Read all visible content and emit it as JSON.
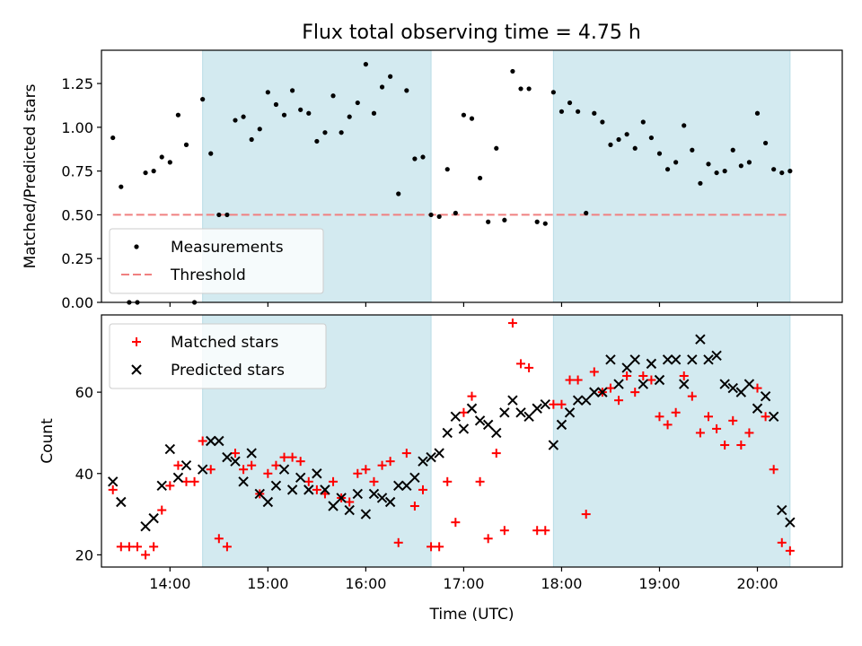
{
  "title": "Flux total observing time = 4.75 h",
  "chart_data": [
    {
      "type": "scatter",
      "ylabel": "Matched/Predicted stars",
      "xlabel": "",
      "xlim": [
        "13:18",
        "20:52"
      ],
      "ylim": [
        0,
        1.44
      ],
      "yticks": [
        "0.00",
        "0.25",
        "0.50",
        "0.75",
        "1.00",
        "1.25"
      ],
      "legend_position": "lower-left",
      "shaded_intervals": [
        [
          "14:20",
          "16:40"
        ],
        [
          "17:55",
          "20:20"
        ]
      ],
      "shade_color": "#d3eaf0",
      "threshold": {
        "name": "Threshold",
        "value": 0.5,
        "x_range": [
          "13:25",
          "20:20"
        ],
        "color": "#f08080",
        "style": "dashed"
      },
      "series": [
        {
          "name": "Measurements",
          "marker": "dot",
          "color": "#000000",
          "points": [
            [
              "13:25",
              0.94
            ],
            [
              "13:30",
              0.66
            ],
            [
              "13:35",
              0.0
            ],
            [
              "13:40",
              0.0
            ],
            [
              "13:45",
              0.74
            ],
            [
              "13:50",
              0.75
            ],
            [
              "13:55",
              0.83
            ],
            [
              "14:00",
              0.8
            ],
            [
              "14:05",
              1.07
            ],
            [
              "14:10",
              0.9
            ],
            [
              "14:15",
              0.0
            ],
            [
              "14:20",
              1.16
            ],
            [
              "14:25",
              0.85
            ],
            [
              "14:30",
              0.5
            ],
            [
              "14:35",
              0.5
            ],
            [
              "14:40",
              1.04
            ],
            [
              "14:45",
              1.06
            ],
            [
              "14:50",
              0.93
            ],
            [
              "14:55",
              0.99
            ],
            [
              "15:00",
              1.2
            ],
            [
              "15:05",
              1.13
            ],
            [
              "15:10",
              1.07
            ],
            [
              "15:15",
              1.21
            ],
            [
              "15:20",
              1.1
            ],
            [
              "15:25",
              1.08
            ],
            [
              "15:30",
              0.92
            ],
            [
              "15:35",
              0.97
            ],
            [
              "15:40",
              1.18
            ],
            [
              "15:45",
              0.97
            ],
            [
              "15:50",
              1.06
            ],
            [
              "15:55",
              1.14
            ],
            [
              "16:00",
              1.36
            ],
            [
              "16:05",
              1.08
            ],
            [
              "16:10",
              1.23
            ],
            [
              "16:15",
              1.29
            ],
            [
              "16:20",
              0.62
            ],
            [
              "16:25",
              1.21
            ],
            [
              "16:30",
              0.82
            ],
            [
              "16:35",
              0.83
            ],
            [
              "16:40",
              0.5
            ],
            [
              "16:45",
              0.49
            ],
            [
              "16:50",
              0.76
            ],
            [
              "16:55",
              0.51
            ],
            [
              "17:00",
              1.07
            ],
            [
              "17:05",
              1.05
            ],
            [
              "17:10",
              0.71
            ],
            [
              "17:15",
              0.46
            ],
            [
              "17:20",
              0.88
            ],
            [
              "17:25",
              0.47
            ],
            [
              "17:30",
              1.32
            ],
            [
              "17:35",
              1.22
            ],
            [
              "17:40",
              1.22
            ],
            [
              "17:45",
              0.46
            ],
            [
              "17:50",
              0.45
            ],
            [
              "17:55",
              1.2
            ],
            [
              "18:00",
              1.09
            ],
            [
              "18:05",
              1.14
            ],
            [
              "18:10",
              1.09
            ],
            [
              "18:15",
              0.51
            ],
            [
              "18:20",
              1.08
            ],
            [
              "18:25",
              1.03
            ],
            [
              "18:30",
              0.9
            ],
            [
              "18:35",
              0.93
            ],
            [
              "18:40",
              0.96
            ],
            [
              "18:45",
              0.88
            ],
            [
              "18:50",
              1.03
            ],
            [
              "18:55",
              0.94
            ],
            [
              "19:00",
              0.85
            ],
            [
              "19:05",
              0.76
            ],
            [
              "19:10",
              0.8
            ],
            [
              "19:15",
              1.01
            ],
            [
              "19:20",
              0.87
            ],
            [
              "19:25",
              0.68
            ],
            [
              "19:30",
              0.79
            ],
            [
              "19:35",
              0.74
            ],
            [
              "19:40",
              0.75
            ],
            [
              "19:45",
              0.87
            ],
            [
              "19:50",
              0.78
            ],
            [
              "19:55",
              0.8
            ],
            [
              "20:00",
              1.08
            ],
            [
              "20:05",
              0.91
            ],
            [
              "20:10",
              0.76
            ],
            [
              "20:15",
              0.74
            ],
            [
              "20:20",
              0.75
            ]
          ]
        }
      ]
    },
    {
      "type": "scatter",
      "ylabel": "Count",
      "xlabel": "Time (UTC)",
      "xlim": [
        "13:18",
        "20:52"
      ],
      "ylim": [
        17,
        79
      ],
      "yticks": [
        "20",
        "40",
        "60"
      ],
      "xticks": [
        "14:00",
        "15:00",
        "16:00",
        "17:00",
        "18:00",
        "19:00",
        "20:00"
      ],
      "legend_position": "top-left",
      "shaded_intervals": [
        [
          "14:20",
          "16:40"
        ],
        [
          "17:55",
          "20:20"
        ]
      ],
      "shade_color": "#d3eaf0",
      "series": [
        {
          "name": "Matched stars",
          "marker": "plus",
          "color": "#ff0000",
          "points": [
            [
              "13:25",
              36
            ],
            [
              "13:30",
              22
            ],
            [
              "13:35",
              22
            ],
            [
              "13:40",
              22
            ],
            [
              "13:45",
              20
            ],
            [
              "13:50",
              22
            ],
            [
              "13:55",
              31
            ],
            [
              "14:00",
              37
            ],
            [
              "14:05",
              42
            ],
            [
              "14:10",
              38
            ],
            [
              "14:15",
              38
            ],
            [
              "14:20",
              48
            ],
            [
              "14:25",
              41
            ],
            [
              "14:30",
              24
            ],
            [
              "14:35",
              22
            ],
            [
              "14:40",
              45
            ],
            [
              "14:45",
              41
            ],
            [
              "14:50",
              42
            ],
            [
              "14:55",
              35
            ],
            [
              "15:00",
              40
            ],
            [
              "15:05",
              42
            ],
            [
              "15:10",
              44
            ],
            [
              "15:15",
              44
            ],
            [
              "15:20",
              43
            ],
            [
              "15:25",
              38
            ],
            [
              "15:30",
              36
            ],
            [
              "15:35",
              35
            ],
            [
              "15:40",
              38
            ],
            [
              "15:45",
              34
            ],
            [
              "15:50",
              33
            ],
            [
              "15:55",
              40
            ],
            [
              "16:00",
              41
            ],
            [
              "16:05",
              38
            ],
            [
              "16:10",
              42
            ],
            [
              "16:15",
              43
            ],
            [
              "16:20",
              23
            ],
            [
              "16:25",
              45
            ],
            [
              "16:30",
              32
            ],
            [
              "16:35",
              36
            ],
            [
              "16:40",
              22
            ],
            [
              "16:45",
              22
            ],
            [
              "16:50",
              38
            ],
            [
              "16:55",
              28
            ],
            [
              "17:00",
              55
            ],
            [
              "17:05",
              59
            ],
            [
              "17:10",
              38
            ],
            [
              "17:15",
              24
            ],
            [
              "17:20",
              45
            ],
            [
              "17:25",
              26
            ],
            [
              "17:30",
              77
            ],
            [
              "17:35",
              67
            ],
            [
              "17:40",
              66
            ],
            [
              "17:45",
              26
            ],
            [
              "17:50",
              26
            ],
            [
              "17:55",
              57
            ],
            [
              "18:00",
              57
            ],
            [
              "18:05",
              63
            ],
            [
              "18:10",
              63
            ],
            [
              "18:15",
              30
            ],
            [
              "18:20",
              65
            ],
            [
              "18:25",
              60
            ],
            [
              "18:30",
              61
            ],
            [
              "18:35",
              58
            ],
            [
              "18:40",
              64
            ],
            [
              "18:45",
              60
            ],
            [
              "18:50",
              64
            ],
            [
              "18:55",
              63
            ],
            [
              "19:00",
              54
            ],
            [
              "19:05",
              52
            ],
            [
              "19:10",
              55
            ],
            [
              "19:15",
              64
            ],
            [
              "19:20",
              59
            ],
            [
              "19:25",
              50
            ],
            [
              "19:30",
              54
            ],
            [
              "19:35",
              51
            ],
            [
              "19:40",
              47
            ],
            [
              "19:45",
              53
            ],
            [
              "19:50",
              47
            ],
            [
              "19:55",
              50
            ],
            [
              "20:00",
              61
            ],
            [
              "20:05",
              54
            ],
            [
              "20:10",
              41
            ],
            [
              "20:15",
              23
            ],
            [
              "20:20",
              21
            ]
          ]
        },
        {
          "name": "Predicted stars",
          "marker": "cross",
          "color": "#000000",
          "points": [
            [
              "13:25",
              38
            ],
            [
              "13:30",
              33
            ],
            [
              "13:45",
              27
            ],
            [
              "13:50",
              29
            ],
            [
              "13:55",
              37
            ],
            [
              "14:00",
              46
            ],
            [
              "14:05",
              39
            ],
            [
              "14:10",
              42
            ],
            [
              "14:20",
              41
            ],
            [
              "14:25",
              48
            ],
            [
              "14:30",
              48
            ],
            [
              "14:35",
              44
            ],
            [
              "14:40",
              43
            ],
            [
              "14:45",
              38
            ],
            [
              "14:50",
              45
            ],
            [
              "14:55",
              35
            ],
            [
              "15:00",
              33
            ],
            [
              "15:05",
              37
            ],
            [
              "15:10",
              41
            ],
            [
              "15:15",
              36
            ],
            [
              "15:20",
              39
            ],
            [
              "15:25",
              36
            ],
            [
              "15:30",
              40
            ],
            [
              "15:35",
              36
            ],
            [
              "15:40",
              32
            ],
            [
              "15:45",
              34
            ],
            [
              "15:50",
              31
            ],
            [
              "15:55",
              35
            ],
            [
              "16:00",
              30
            ],
            [
              "16:05",
              35
            ],
            [
              "16:10",
              34
            ],
            [
              "16:15",
              33
            ],
            [
              "16:20",
              37
            ],
            [
              "16:25",
              37
            ],
            [
              "16:30",
              39
            ],
            [
              "16:35",
              43
            ],
            [
              "16:40",
              44
            ],
            [
              "16:45",
              45
            ],
            [
              "16:50",
              50
            ],
            [
              "16:55",
              54
            ],
            [
              "17:00",
              51
            ],
            [
              "17:05",
              56
            ],
            [
              "17:10",
              53
            ],
            [
              "17:15",
              52
            ],
            [
              "17:20",
              50
            ],
            [
              "17:25",
              55
            ],
            [
              "17:30",
              58
            ],
            [
              "17:35",
              55
            ],
            [
              "17:40",
              54
            ],
            [
              "17:45",
              56
            ],
            [
              "17:50",
              57
            ],
            [
              "17:55",
              47
            ],
            [
              "18:00",
              52
            ],
            [
              "18:05",
              55
            ],
            [
              "18:10",
              58
            ],
            [
              "18:15",
              58
            ],
            [
              "18:20",
              60
            ],
            [
              "18:25",
              60
            ],
            [
              "18:30",
              68
            ],
            [
              "18:35",
              62
            ],
            [
              "18:40",
              66
            ],
            [
              "18:45",
              68
            ],
            [
              "18:50",
              62
            ],
            [
              "18:55",
              67
            ],
            [
              "19:00",
              63
            ],
            [
              "19:05",
              68
            ],
            [
              "19:10",
              68
            ],
            [
              "19:15",
              62
            ],
            [
              "19:20",
              68
            ],
            [
              "19:25",
              73
            ],
            [
              "19:30",
              68
            ],
            [
              "19:35",
              69
            ],
            [
              "19:40",
              62
            ],
            [
              "19:45",
              61
            ],
            [
              "19:50",
              60
            ],
            [
              "19:55",
              62
            ],
            [
              "20:00",
              56
            ],
            [
              "20:05",
              59
            ],
            [
              "20:10",
              54
            ],
            [
              "20:15",
              31
            ],
            [
              "20:20",
              28
            ]
          ]
        }
      ]
    }
  ]
}
